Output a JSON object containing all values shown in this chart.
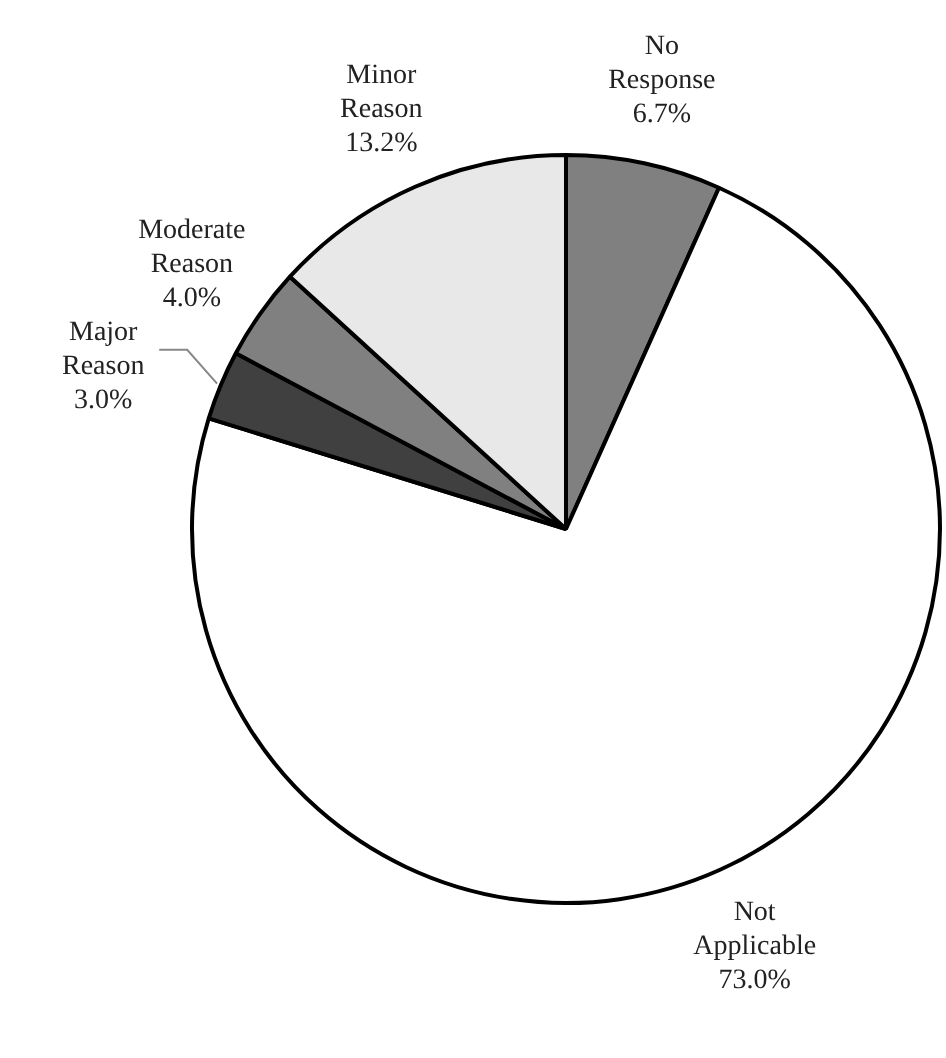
{
  "chart_data": {
    "type": "pie",
    "categories": [
      "No Response",
      "Not Applicable",
      "Major Reason",
      "Moderate Reason",
      "Minor Reason"
    ],
    "values": [
      6.7,
      73.0,
      3.0,
      4.0,
      13.2
    ],
    "value_labels": [
      "6.7%",
      "73.0%",
      "3.0%",
      "4.0%",
      "13.2%"
    ],
    "colors": [
      "#808080",
      "#ffffff",
      "#404040",
      "#808080",
      "#e8e8e8"
    ],
    "legend": false
  }
}
